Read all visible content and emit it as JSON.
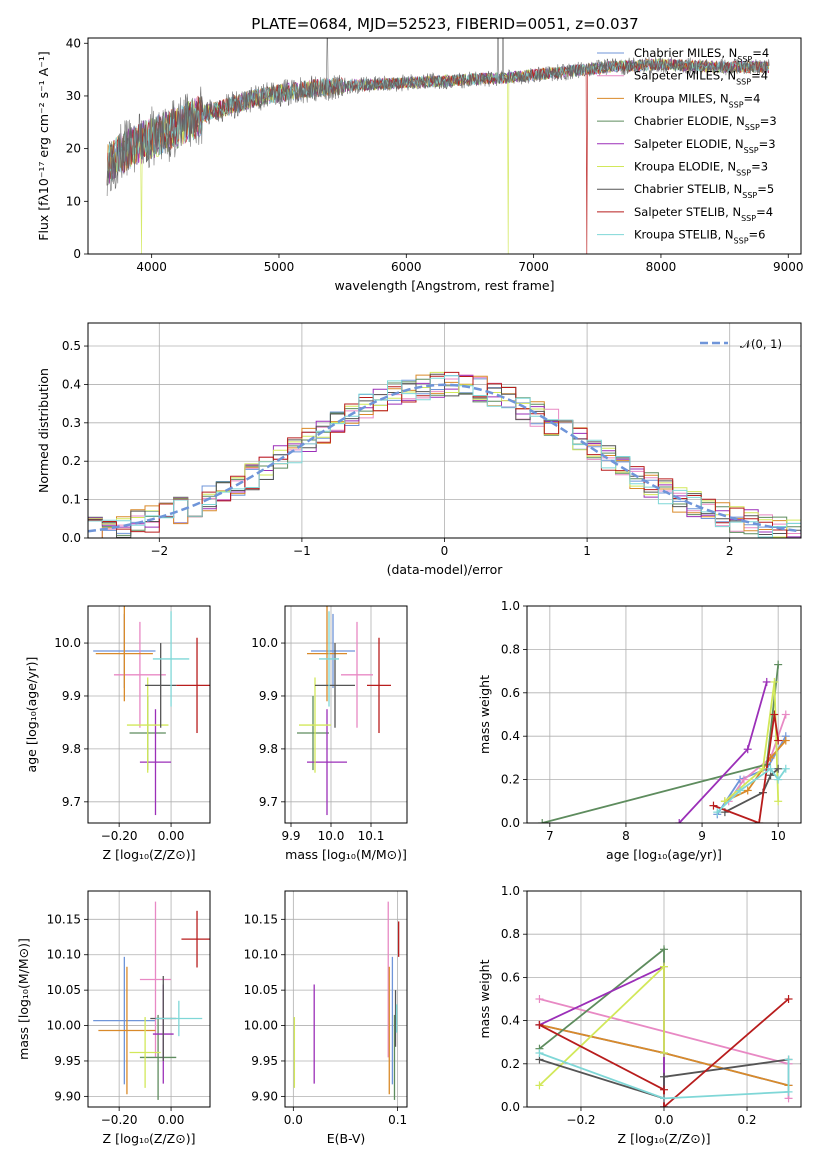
{
  "figure": {
    "title": "PLATE=0684, MJD=52523, FIBERID=0051, z=0.037"
  },
  "series_colors": {
    "chabrier_miles": "#6f95d9",
    "salpeter_miles": "#e889c4",
    "kroupa_miles": "#d98a2a",
    "chabrier_elodie": "#5e8c5e",
    "salpeter_elodie": "#9b2fb8",
    "kroupa_elodie": "#d2e85a",
    "chabrier_stelib": "#555555",
    "salpeter_stelib": "#b81d1d",
    "kroupa_stelib": "#7fd7d7"
  },
  "chart_data": [
    {
      "id": "spectrum",
      "type": "line",
      "title": "PLATE=0684, MJD=52523, FIBERID=0051, z=0.037",
      "xlabel": "wavelength [Angstrom, rest frame]",
      "ylabel": "Flux [fλ10⁻¹⁷ erg cm⁻² s⁻¹ A⁻¹]",
      "xlim": [
        3500,
        9100
      ],
      "ylim": [
        0,
        41
      ],
      "xticks": [
        4000,
        5000,
        6000,
        7000,
        8000,
        9000
      ],
      "yticks": [
        0,
        10,
        20,
        30,
        40
      ],
      "grid": false,
      "legend_position": "top-right",
      "continuum": [
        [
          3650,
          17
        ],
        [
          3750,
          19
        ],
        [
          3900,
          21
        ],
        [
          4000,
          22
        ],
        [
          4200,
          24
        ],
        [
          4400,
          26.5
        ],
        [
          4600,
          28
        ],
        [
          4800,
          29.5
        ],
        [
          5000,
          30.5
        ],
        [
          5300,
          31.5
        ],
        [
          5600,
          32
        ],
        [
          6000,
          32.5
        ],
        [
          6400,
          33
        ],
        [
          6800,
          33.5
        ],
        [
          7200,
          34.5
        ],
        [
          7600,
          35.5
        ],
        [
          8000,
          36
        ],
        [
          8400,
          35.5
        ],
        [
          8850,
          35.5
        ]
      ],
      "legend": [
        {
          "label": "Chabrier MILES, N",
          "sub": "SSP",
          "suffix": "=4",
          "color": "#6f95d9"
        },
        {
          "label": "Salpeter MILES, N",
          "sub": "SSP",
          "suffix": "=4",
          "color": "#e889c4"
        },
        {
          "label": "Kroupa MILES, N",
          "sub": "SSP",
          "suffix": "=4",
          "color": "#d98a2a"
        },
        {
          "label": "Chabrier ELODIE, N",
          "sub": "SSP",
          "suffix": "=3",
          "color": "#5e8c5e"
        },
        {
          "label": "Salpeter ELODIE, N",
          "sub": "SSP",
          "suffix": "=3",
          "color": "#9b2fb8"
        },
        {
          "label": "Kroupa ELODIE, N",
          "sub": "SSP",
          "suffix": "=3",
          "color": "#d2e85a"
        },
        {
          "label": "Chabrier STELIB, N",
          "sub": "SSP",
          "suffix": "=5",
          "color": "#555555"
        },
        {
          "label": "Salpeter STELIB, N",
          "sub": "SSP",
          "suffix": "=4",
          "color": "#b81d1d"
        },
        {
          "label": "Kroupa STELIB, N",
          "sub": "SSP",
          "suffix": "=6",
          "color": "#7fd7d7"
        }
      ],
      "dropouts": [
        [
          3920,
          "#d2e85a"
        ],
        [
          6800,
          "#d2e85a"
        ],
        [
          7420,
          "#b81d1d"
        ]
      ]
    },
    {
      "id": "residuals",
      "type": "line",
      "xlabel": "(data-model)/error",
      "ylabel": "Normed distribution",
      "xlim": [
        -2.5,
        2.5
      ],
      "ylim": [
        0,
        0.56
      ],
      "xticks": [
        -2,
        -1,
        0,
        1,
        2
      ],
      "yticks": [
        0.0,
        0.1,
        0.2,
        0.3,
        0.4,
        0.5
      ],
      "grid": true,
      "legend_position": "top-right",
      "legend_label": "𝒩(0, 1)",
      "reference_curve": "gaussian(0,1)",
      "bin_width": 0.1
    },
    {
      "id": "age_vs_Z",
      "type": "scatter",
      "xlabel": "Z [log₁₀(Z/Z⊙)]",
      "ylabel": "age  [log₁₀(age/yr)]",
      "xlim": [
        -0.32,
        0.15
      ],
      "ylim": [
        9.66,
        10.07
      ],
      "xticks": [
        -0.2,
        0.0
      ],
      "yticks": [
        9.7,
        9.8,
        9.9,
        10.0
      ],
      "grid": true,
      "points": [
        {
          "x": -0.18,
          "xerr": 0.12,
          "y": 9.985,
          "yerr": 0.07,
          "color": "#6f95d9"
        },
        {
          "x": -0.12,
          "xerr": 0.1,
          "y": 9.94,
          "yerr": 0.1,
          "color": "#e889c4"
        },
        {
          "x": -0.18,
          "xerr": 0.11,
          "y": 9.98,
          "yerr": 0.09,
          "color": "#d98a2a"
        },
        {
          "x": -0.09,
          "xerr": 0.07,
          "y": 9.83,
          "yerr": 0.07,
          "color": "#5e8c5e"
        },
        {
          "x": -0.06,
          "xerr": 0.06,
          "y": 9.775,
          "yerr": 0.1,
          "color": "#9b2fb8"
        },
        {
          "x": -0.09,
          "xerr": 0.08,
          "y": 9.845,
          "yerr": 0.09,
          "color": "#d2e85a"
        },
        {
          "x": -0.04,
          "xerr": 0.06,
          "y": 9.92,
          "yerr": 0.08,
          "color": "#555555"
        },
        {
          "x": 0.1,
          "xerr": 0.08,
          "y": 9.92,
          "yerr": 0.09,
          "color": "#b81d1d"
        },
        {
          "x": 0.0,
          "xerr": 0.07,
          "y": 9.97,
          "yerr": 0.09,
          "color": "#7fd7d7"
        }
      ]
    },
    {
      "id": "age_vs_mass",
      "type": "scatter",
      "xlabel": "mass [log₁₀(M/M⊙)]",
      "ylabel": "",
      "xlim": [
        9.885,
        10.19
      ],
      "ylim": [
        9.66,
        10.07
      ],
      "xticks": [
        9.9,
        10.0,
        10.1
      ],
      "yticks": [
        9.7,
        9.8,
        9.9,
        10.0
      ],
      "grid": true,
      "points": [
        {
          "x": 10.005,
          "xerr": 0.055,
          "y": 9.985,
          "yerr": 0.07,
          "color": "#6f95d9"
        },
        {
          "x": 10.065,
          "xerr": 0.04,
          "y": 9.94,
          "yerr": 0.1,
          "color": "#e889c4"
        },
        {
          "x": 9.99,
          "xerr": 0.05,
          "y": 9.98,
          "yerr": 0.09,
          "color": "#d98a2a"
        },
        {
          "x": 9.955,
          "xerr": 0.04,
          "y": 9.83,
          "yerr": 0.07,
          "color": "#5e8c5e"
        },
        {
          "x": 9.99,
          "xerr": 0.05,
          "y": 9.775,
          "yerr": 0.1,
          "color": "#9b2fb8"
        },
        {
          "x": 9.96,
          "xerr": 0.04,
          "y": 9.845,
          "yerr": 0.09,
          "color": "#d2e85a"
        },
        {
          "x": 10.01,
          "xerr": 0.05,
          "y": 9.92,
          "yerr": 0.08,
          "color": "#555555"
        },
        {
          "x": 10.12,
          "xerr": 0.03,
          "y": 9.92,
          "yerr": 0.09,
          "color": "#b81d1d"
        },
        {
          "x": 9.995,
          "xerr": 0.025,
          "y": 9.97,
          "yerr": 0.09,
          "color": "#7fd7d7"
        }
      ]
    },
    {
      "id": "weight_vs_age",
      "type": "line",
      "xlabel": "age  [log₁₀(age/yr)]",
      "ylabel": "mass weight",
      "xlim": [
        6.7,
        10.3
      ],
      "ylim": [
        0,
        1
      ],
      "xticks": [
        7,
        8,
        9,
        10
      ],
      "yticks": [
        0.0,
        0.2,
        0.4,
        0.6,
        0.8,
        1.0
      ],
      "grid": true,
      "series": [
        {
          "color": "#6f95d9",
          "x": [
            9.2,
            9.5,
            9.85,
            10.1
          ],
          "y": [
            0.04,
            0.2,
            0.25,
            0.4
          ]
        },
        {
          "color": "#e889c4",
          "x": [
            9.35,
            9.55,
            9.9,
            10.1
          ],
          "y": [
            0.1,
            0.2,
            0.3,
            0.5
          ]
        },
        {
          "color": "#d98a2a",
          "x": [
            9.3,
            9.6,
            9.9,
            10.1
          ],
          "y": [
            0.1,
            0.15,
            0.3,
            0.38
          ]
        },
        {
          "color": "#5e8c5e",
          "x": [
            6.9,
            9.85,
            10.0
          ],
          "y": [
            0.0,
            0.27,
            0.73
          ]
        },
        {
          "color": "#9b2fb8",
          "x": [
            8.7,
            9.6,
            9.85
          ],
          "y": [
            0.0,
            0.34,
            0.65
          ]
        },
        {
          "color": "#d2e85a",
          "x": [
            9.3,
            9.8,
            9.95,
            10.0
          ],
          "y": [
            0.1,
            0.25,
            0.65,
            0.1
          ]
        },
        {
          "color": "#555555",
          "x": [
            9.3,
            9.8,
            9.9,
            10.0
          ],
          "y": [
            0.05,
            0.14,
            0.22,
            0.25
          ]
        },
        {
          "color": "#b81d1d",
          "x": [
            9.15,
            9.75,
            9.95,
            10.0
          ],
          "y": [
            0.08,
            0.0,
            0.5,
            0.38
          ]
        },
        {
          "color": "#7fd7d7",
          "x": [
            9.2,
            9.5,
            9.9,
            10.0,
            10.1
          ],
          "y": [
            0.05,
            0.15,
            0.25,
            0.2,
            0.25
          ]
        }
      ]
    },
    {
      "id": "mass_vs_Z",
      "type": "scatter",
      "xlabel": "Z [log₁₀(Z/Z⊙)]",
      "ylabel": "mass [log₁₀(M/M⊙)]",
      "xlim": [
        -0.32,
        0.15
      ],
      "ylim": [
        9.885,
        10.19
      ],
      "xticks": [
        -0.2,
        0.0
      ],
      "yticks": [
        9.9,
        9.95,
        10.0,
        10.05,
        10.1,
        10.15
      ],
      "grid": true,
      "points": [
        {
          "x": -0.18,
          "xerr": 0.12,
          "y": 10.007,
          "yerr": 0.09,
          "color": "#6f95d9"
        },
        {
          "x": -0.06,
          "xerr": 0.06,
          "y": 10.065,
          "yerr": 0.11,
          "color": "#e889c4"
        },
        {
          "x": -0.17,
          "xerr": 0.11,
          "y": 9.993,
          "yerr": 0.09,
          "color": "#d98a2a"
        },
        {
          "x": -0.05,
          "xerr": 0.07,
          "y": 9.955,
          "yerr": 0.06,
          "color": "#5e8c5e"
        },
        {
          "x": -0.03,
          "xerr": 0.04,
          "y": 9.988,
          "yerr": 0.07,
          "color": "#9b2fb8"
        },
        {
          "x": -0.1,
          "xerr": 0.06,
          "y": 9.962,
          "yerr": 0.05,
          "color": "#d2e85a"
        },
        {
          "x": -0.03,
          "xerr": 0.05,
          "y": 10.01,
          "yerr": 0.06,
          "color": "#555555"
        },
        {
          "x": 0.1,
          "xerr": 0.06,
          "y": 10.122,
          "yerr": 0.04,
          "color": "#b81d1d"
        },
        {
          "x": 0.03,
          "xerr": 0.09,
          "y": 10.01,
          "yerr": 0.025,
          "color": "#7fd7d7"
        }
      ]
    },
    {
      "id": "mass_vs_ebv",
      "type": "scatter",
      "xlabel": "E(B-V)",
      "ylabel": "",
      "xlim": [
        -0.008,
        0.109
      ],
      "ylim": [
        9.885,
        10.19
      ],
      "xticks": [
        0.0,
        0.1
      ],
      "yticks": [
        9.9,
        9.95,
        10.0,
        10.05,
        10.1,
        10.15
      ],
      "grid": true,
      "points": [
        {
          "x": 0.095,
          "y": 10.007,
          "yerr": 0.09,
          "color": "#6f95d9"
        },
        {
          "x": 0.091,
          "y": 10.065,
          "yerr": 0.11,
          "color": "#e889c4"
        },
        {
          "x": 0.092,
          "y": 9.993,
          "yerr": 0.09,
          "color": "#d98a2a"
        },
        {
          "x": 0.097,
          "y": 9.955,
          "yerr": 0.06,
          "color": "#5e8c5e"
        },
        {
          "x": 0.02,
          "y": 9.988,
          "yerr": 0.07,
          "color": "#9b2fb8"
        },
        {
          "x": 0.001,
          "y": 9.962,
          "yerr": 0.05,
          "color": "#d2e85a"
        },
        {
          "x": 0.098,
          "y": 10.01,
          "yerr": 0.04,
          "color": "#555555"
        },
        {
          "x": 0.101,
          "y": 10.122,
          "yerr": 0.025,
          "color": "#b81d1d"
        },
        {
          "x": 0.099,
          "y": 10.01,
          "yerr": 0.02,
          "color": "#7fd7d7"
        }
      ]
    },
    {
      "id": "weight_vs_Z",
      "type": "line",
      "xlabel": "Z [log₁₀(Z/Z⊙)]",
      "ylabel": "mass weight",
      "xlim": [
        -0.33,
        0.33
      ],
      "ylim": [
        0,
        1
      ],
      "xticks": [
        -0.2,
        0.0,
        0.2
      ],
      "yticks": [
        0.0,
        0.2,
        0.4,
        0.6,
        0.8,
        1.0
      ],
      "grid": true,
      "series": [
        {
          "color": "#6f95d9",
          "x": [
            -0.3,
            0.0,
            0.3
          ],
          "y": [
            0.38,
            0.25,
            0.1
          ]
        },
        {
          "color": "#e889c4",
          "x": [
            -0.3,
            0.3,
            0.3
          ],
          "y": [
            0.5,
            0.2,
            0.04
          ]
        },
        {
          "color": "#d98a2a",
          "x": [
            -0.3,
            0.0,
            0.3
          ],
          "y": [
            0.38,
            0.25,
            0.1
          ]
        },
        {
          "color": "#5e8c5e",
          "x": [
            -0.3,
            0.0,
            0.0
          ],
          "y": [
            0.27,
            0.73,
            0.0
          ]
        },
        {
          "color": "#9b2fb8",
          "x": [
            -0.3,
            0.0,
            0.0
          ],
          "y": [
            0.38,
            0.65,
            0.0
          ]
        },
        {
          "color": "#d2e85a",
          "x": [
            -0.3,
            0.0,
            0.0
          ],
          "y": [
            0.1,
            0.65,
            0.25
          ]
        },
        {
          "color": "#555555",
          "x": [
            -0.3,
            0.0,
            0.0,
            0.3
          ],
          "y": [
            0.22,
            0.04,
            0.14,
            0.22
          ]
        },
        {
          "color": "#b81d1d",
          "x": [
            -0.3,
            0.0,
            0.0,
            0.3
          ],
          "y": [
            0.38,
            0.08,
            0.0,
            0.5
          ]
        },
        {
          "color": "#7fd7d7",
          "x": [
            -0.3,
            0.0,
            0.3,
            0.3
          ],
          "y": [
            0.25,
            0.04,
            0.07,
            0.22
          ]
        }
      ]
    }
  ]
}
